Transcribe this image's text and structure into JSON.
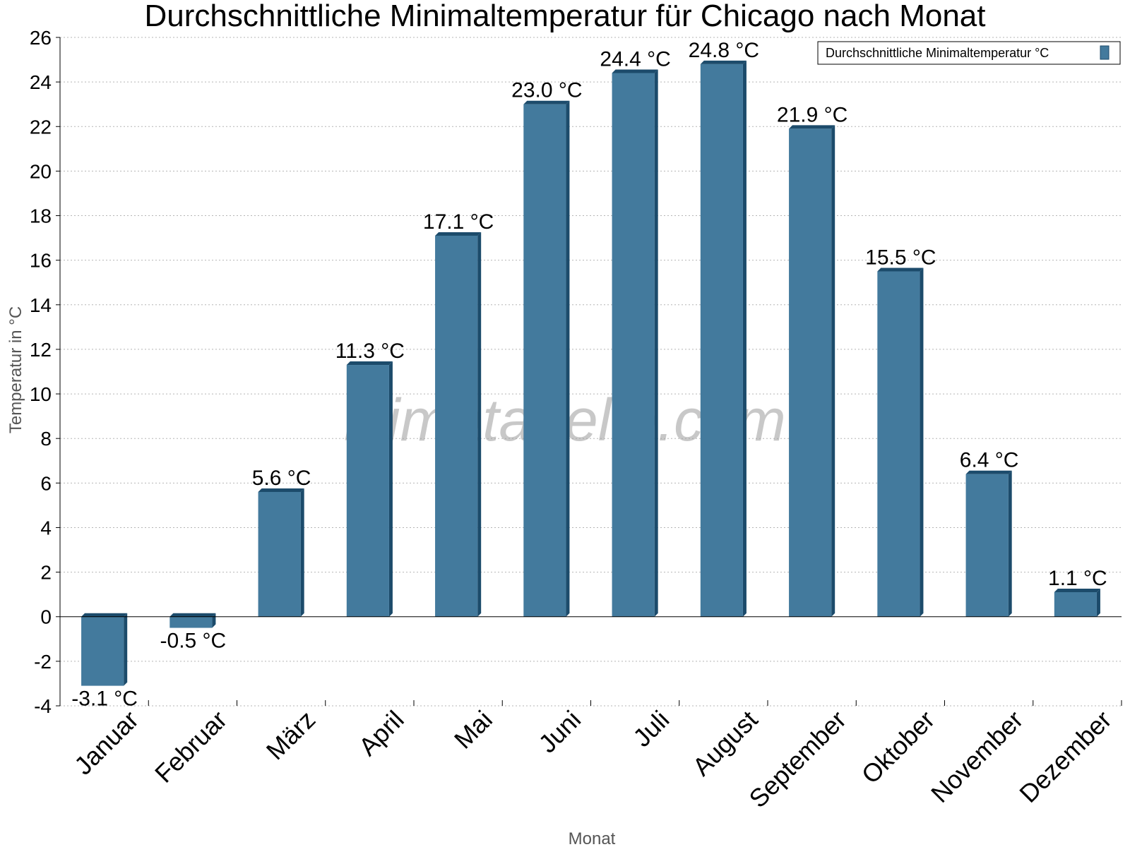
{
  "chart_data": {
    "type": "bar",
    "title": "Durchschnittliche Minimaltemperatur für Chicago nach Monat",
    "xlabel": "Monat",
    "ylabel": "Temperatur in °C",
    "ylim": [
      -4,
      26
    ],
    "ytick_step": 2,
    "grid": true,
    "legend_position": "top-right",
    "categories": [
      "Januar",
      "Februar",
      "März",
      "April",
      "Mai",
      "Juni",
      "Juli",
      "August",
      "September",
      "Oktober",
      "November",
      "Dezember"
    ],
    "series": [
      {
        "name": "Durchschnittliche Minimaltemperatur °C",
        "values": [
          -3.1,
          -0.5,
          5.6,
          11.3,
          17.1,
          23.0,
          24.4,
          24.8,
          21.9,
          15.5,
          6.4,
          1.1
        ],
        "labels": [
          "-3.1 °C",
          "-0.5 °C",
          "5.6 °C",
          "11.3 °C",
          "17.1 °C",
          "23.0 °C",
          "24.4 °C",
          "24.8 °C",
          "21.9 °C",
          "15.5 °C",
          "6.4 °C",
          "1.1 °C"
        ],
        "color": "#437a9d",
        "edge_color": "#1c4b6b"
      }
    ],
    "watermark": "klimatabelle.com"
  }
}
